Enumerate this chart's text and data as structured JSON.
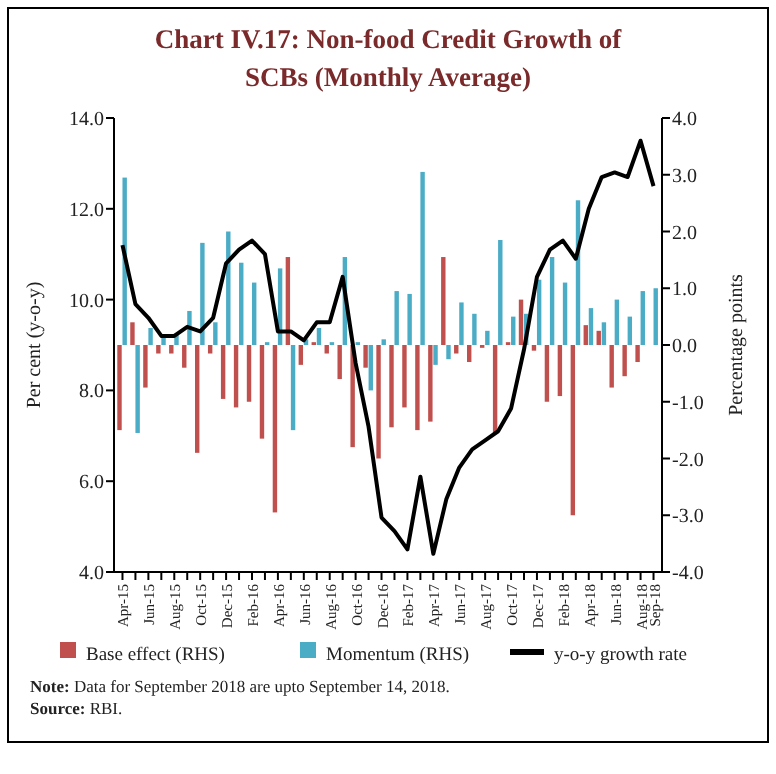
{
  "chart_data": {
    "type": "bar",
    "title": "Chart IV.17: Non-food Credit Growth of SCBs (Monthly Average)",
    "ylabel": "Per cent (y-o-y)",
    "y2label": "Percentage points",
    "categories": [
      "Apr-15",
      null,
      "Jun-15",
      null,
      "Aug-15",
      null,
      "Oct-15",
      null,
      "Dec-15",
      null,
      "Feb-16",
      null,
      "Apr-16",
      null,
      "Jun-16",
      null,
      "Aug-16",
      null,
      "Oct-16",
      null,
      "Dec-16",
      null,
      "Feb-17",
      null,
      "Apr-17",
      null,
      "Jun-17",
      null,
      "Aug-17",
      null,
      "Oct-17",
      null,
      "Dec-17",
      null,
      "Feb-18",
      null,
      "Apr-18",
      null,
      "Jun-18",
      null,
      "Aug-18",
      "Sep-18"
    ],
    "series": [
      {
        "name": "Base effect (RHS)",
        "axis": "y2",
        "color": "#c0504d",
        "values": [
          -1.5,
          0.4,
          -0.75,
          -0.15,
          -0.15,
          -0.4,
          -1.9,
          -0.15,
          -0.95,
          -1.1,
          -1.0,
          -1.65,
          -2.95,
          1.55,
          -0.35,
          0.05,
          -0.15,
          -0.6,
          -1.8,
          -0.4,
          -2.0,
          -1.45,
          -1.1,
          -1.5,
          -1.35,
          1.55,
          -0.15,
          -0.3,
          -0.05,
          -1.55,
          0.05,
          0.8,
          -0.1,
          -1.0,
          -0.9,
          -3.0,
          0.35,
          0.25,
          -0.75,
          -0.55,
          -0.3,
          null
        ]
      },
      {
        "name": "Momentum (RHS)",
        "axis": "y2",
        "color": "#4bacc6",
        "values": [
          2.95,
          -1.55,
          0.3,
          0.15,
          0.2,
          0.6,
          1.8,
          0.4,
          2.0,
          1.45,
          1.1,
          0.05,
          1.35,
          -1.5,
          0.1,
          0.3,
          0.05,
          1.55,
          0.05,
          -0.8,
          0.1,
          0.95,
          0.9,
          3.05,
          -0.35,
          -0.25,
          0.75,
          0.55,
          0.25,
          1.85,
          0.5,
          0.55,
          1.15,
          1.55,
          1.1,
          2.55,
          0.65,
          0.4,
          0.8,
          0.5,
          0.95,
          1.0
        ]
      },
      {
        "name": "y-o-y growth rate",
        "type": "line",
        "color": "#000000",
        "values": [
          11.2,
          9.9,
          9.6,
          9.2,
          9.2,
          9.4,
          9.3,
          9.6,
          10.8,
          11.1,
          11.3,
          11.0,
          9.3,
          9.3,
          9.1,
          9.5,
          9.5,
          10.5,
          8.6,
          7.2,
          5.2,
          4.9,
          4.5,
          6.1,
          4.4,
          5.6,
          6.3,
          6.7,
          6.9,
          7.1,
          7.6,
          8.9,
          10.5,
          11.1,
          11.3,
          10.9,
          12.0,
          12.7,
          12.8,
          12.7,
          13.5,
          12.5
        ]
      }
    ],
    "ylim": [
      4,
      14
    ],
    "yticks": [
      {
        "value": 4,
        "label": "4.0"
      },
      {
        "value": 6,
        "label": "6.0"
      },
      {
        "value": 8,
        "label": "8.0"
      },
      {
        "value": 10,
        "label": "10.0"
      },
      {
        "value": 12,
        "label": "12.0"
      },
      {
        "value": 14,
        "label": "14.0"
      }
    ],
    "y2lim": [
      -4,
      4
    ],
    "y2ticks": [
      {
        "value": -4,
        "label": "-4.0"
      },
      {
        "value": -3,
        "label": "-3.0"
      },
      {
        "value": -2,
        "label": "-2.0"
      },
      {
        "value": -1,
        "label": "-1.0"
      },
      {
        "value": 0,
        "label": "0.0"
      },
      {
        "value": 1,
        "label": "1.0"
      },
      {
        "value": 2,
        "label": "2.0"
      },
      {
        "value": 3,
        "label": "3.0"
      },
      {
        "value": 4,
        "label": "4.0"
      }
    ],
    "legend": "bottom",
    "annotations": [
      "Note: Data for September 2018 are upto September 14, 2018.",
      "Source: RBI."
    ]
  }
}
